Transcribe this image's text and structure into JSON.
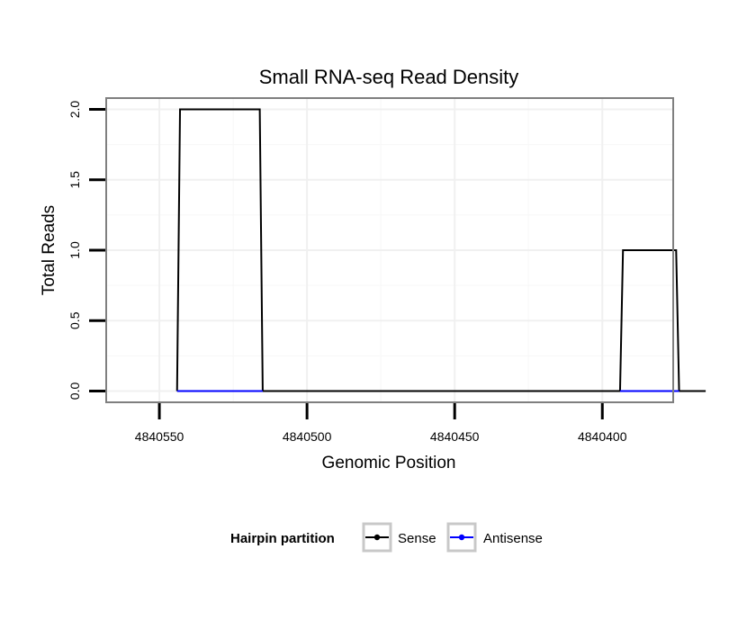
{
  "chart_data": {
    "type": "line",
    "title": "Small RNA-seq Read Density",
    "xlabel": "Genomic Position",
    "ylabel": "Total Reads",
    "xlim": [
      4840568,
      4840376
    ],
    "ylim": [
      -0.08,
      2.08
    ],
    "x_reversed": true,
    "x_ticks": [
      4840550,
      4840500,
      4840450,
      4840400
    ],
    "x_tick_labels": [
      "4840550",
      "4840500",
      "4840450",
      "4840400"
    ],
    "y_ticks": [
      0.0,
      0.5,
      1.0,
      1.5,
      2.0
    ],
    "y_tick_labels": [
      "0.0",
      "0.5",
      "1.0",
      "1.5",
      "2.0"
    ],
    "grid": true,
    "legend": {
      "title": "Hairpin partition",
      "position": "bottom"
    },
    "series": [
      {
        "name": "Sense",
        "color": "#000000",
        "x": [
          4840544,
          4840543,
          4840516,
          4840515,
          4840394,
          4840393,
          4840375,
          4840374,
          4840365
        ],
        "y": [
          0,
          2,
          2,
          0,
          0,
          1,
          1,
          0,
          0
        ]
      },
      {
        "name": "Antisense",
        "color": "#0000ff",
        "x": [
          4840544,
          4840515
        ],
        "y": [
          0,
          0
        ],
        "segments": [
          [
            4840544,
            4840515
          ],
          [
            4840394,
            4840374
          ]
        ]
      }
    ]
  }
}
